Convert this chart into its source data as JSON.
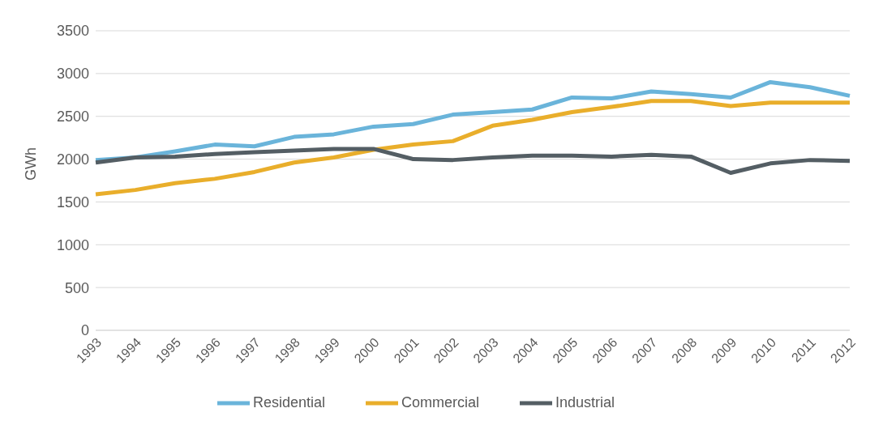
{
  "chart_data": {
    "type": "line",
    "ylabel": "GWh",
    "categories": [
      "1993",
      "1994",
      "1995",
      "1996",
      "1997",
      "1998",
      "1999",
      "2000",
      "2001",
      "2002",
      "2003",
      "2004",
      "2005",
      "2006",
      "2007",
      "2008",
      "2009",
      "2010",
      "2011",
      "2012"
    ],
    "series": [
      {
        "name": "Residential",
        "color": "#6ab4da",
        "values": [
          1990,
          2020,
          2090,
          2170,
          2150,
          2260,
          2290,
          2380,
          2410,
          2520,
          2550,
          2580,
          2720,
          2710,
          2790,
          2760,
          2720,
          2900,
          2840,
          2740
        ]
      },
      {
        "name": "Commercial",
        "color": "#e9ae2b",
        "values": [
          1590,
          1640,
          1720,
          1770,
          1850,
          1960,
          2020,
          2110,
          2170,
          2210,
          2390,
          2460,
          2550,
          2610,
          2680,
          2680,
          2620,
          2660,
          2660,
          2660
        ]
      },
      {
        "name": "Industrial",
        "color": "#545e64",
        "values": [
          1960,
          2020,
          2030,
          2060,
          2080,
          2100,
          2120,
          2120,
          2000,
          1990,
          2020,
          2040,
          2040,
          2030,
          2050,
          2030,
          1840,
          1950,
          1990,
          1980
        ]
      }
    ],
    "ylim": [
      0,
      3500
    ],
    "yticks": [
      0,
      500,
      1000,
      1500,
      2000,
      2500,
      3000,
      3500
    ],
    "grid": "y",
    "legend": "bottom",
    "marker": "none",
    "line_style": "solid"
  }
}
